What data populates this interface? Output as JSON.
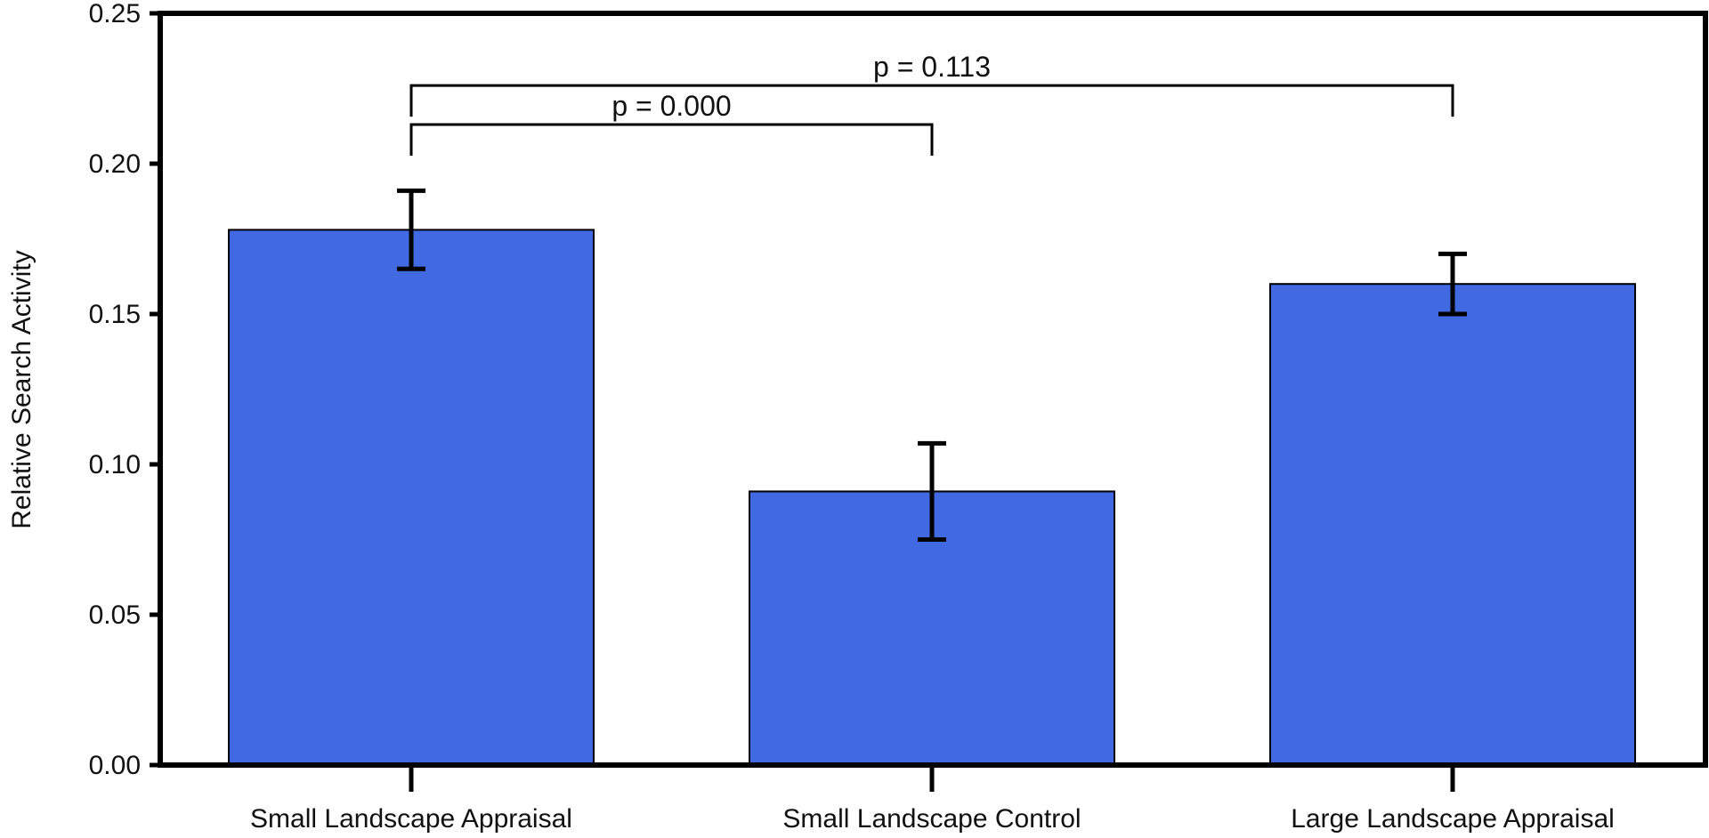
{
  "chart_data": {
    "type": "bar",
    "title": "",
    "xlabel": "",
    "ylabel": "Relative Search Activity",
    "categories": [
      "Small Landscape Appraisal",
      "Small Landscape Control",
      "Large Landscape Appraisal"
    ],
    "values": [
      0.178,
      0.091,
      0.16
    ],
    "errors": [
      {
        "low": 0.165,
        "high": 0.191
      },
      {
        "low": 0.075,
        "high": 0.107
      },
      {
        "low": 0.15,
        "high": 0.17
      }
    ],
    "ylim": [
      0,
      0.25
    ],
    "yticks": [
      "0.00",
      "0.05",
      "0.10",
      "0.15",
      "0.20",
      "0.25"
    ],
    "grid": false,
    "bar_color": "#4169e1",
    "annotations": [
      {
        "text": "p = 0.000",
        "from": 0,
        "to": 1,
        "level": 0.213
      },
      {
        "text": "p = 0.113",
        "from": 0,
        "to": 2,
        "level": 0.226
      }
    ]
  }
}
